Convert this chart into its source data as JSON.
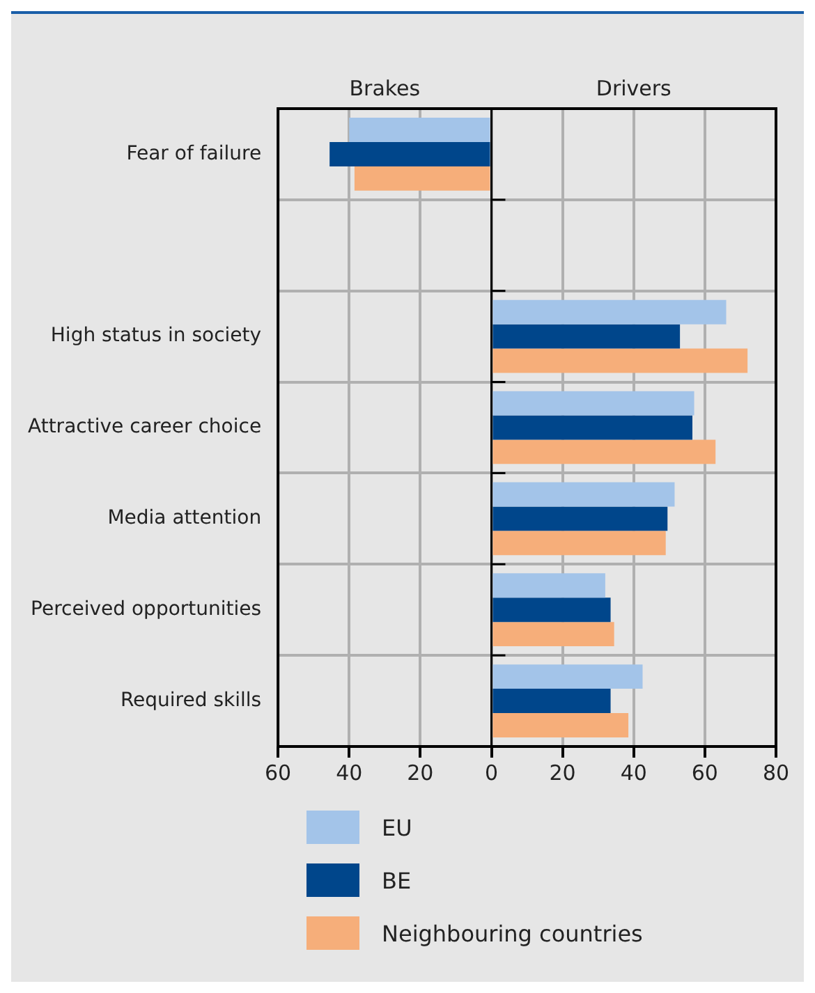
{
  "chart_data": {
    "type": "bar",
    "orientation": "horizontal",
    "annotations": [
      "Brakes",
      "Drivers"
    ],
    "categories": [
      "Fear of failure",
      null,
      "High status in society",
      "Attractive career choice",
      "Media attention",
      "Perceived opportunities",
      "Required skills"
    ],
    "series": [
      {
        "name": "EU",
        "color": "#a3c4e9",
        "values": [
          -40,
          null,
          66,
          57,
          51.5,
          32,
          42.5
        ]
      },
      {
        "name": "BE",
        "color": "#00468b",
        "values": [
          -45.5,
          null,
          53,
          56.5,
          49.5,
          33.5,
          33.5
        ]
      },
      {
        "name": "Neighbouring countries",
        "color": "#f6ae7a",
        "values": [
          -38.5,
          null,
          72,
          63,
          49,
          34.5,
          38.5
        ]
      }
    ],
    "xlim": [
      -60,
      80
    ],
    "xticks": [
      {
        "value": -60,
        "label": "60"
      },
      {
        "value": -40,
        "label": "40"
      },
      {
        "value": -20,
        "label": "20"
      },
      0,
      20,
      40,
      60,
      80
    ],
    "grid": true,
    "legend": "bottom"
  }
}
